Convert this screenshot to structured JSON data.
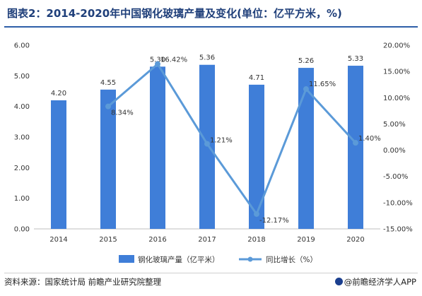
{
  "header": {
    "title": "图表2：2014-2020年中国钢化玻璃产量及变化(单位：亿平方米，%)"
  },
  "chart_data": {
    "type": "bar",
    "categories": [
      "2014",
      "2015",
      "2016",
      "2017",
      "2018",
      "2019",
      "2020"
    ],
    "series": [
      {
        "name": "钢化玻璃产量（亿平米）",
        "type": "bar",
        "axis": "left",
        "values": [
          4.2,
          4.55,
          5.3,
          5.36,
          4.71,
          5.26,
          5.33
        ],
        "labels": [
          "4.20",
          "4.55",
          "5.30",
          "5.36",
          "4.71",
          "5.26",
          "5.33"
        ]
      },
      {
        "name": "同比增长（%）",
        "type": "line",
        "axis": "right",
        "values": [
          null,
          8.34,
          16.42,
          1.21,
          -12.17,
          11.65,
          1.4
        ],
        "labels": [
          "",
          "8.34%",
          "16.42%",
          "1.21%",
          "-12.17%",
          "11.65%",
          "1.40%"
        ]
      }
    ],
    "y_left": {
      "lim": [
        0,
        6
      ],
      "ticks": [
        "0.00",
        "1.00",
        "2.00",
        "3.00",
        "4.00",
        "5.00",
        "6.00"
      ]
    },
    "y_right": {
      "lim": [
        -15,
        20
      ],
      "ticks": [
        "-15.00%",
        "-10.00%",
        "-5.00%",
        "0.00%",
        "5.00%",
        "10.00%",
        "15.00%",
        "20.00%"
      ]
    },
    "legend_position": "bottom",
    "grid": false,
    "colors": {
      "bar": "#3f7ed8",
      "line": "#5b9ad8"
    }
  },
  "footer": {
    "source": "资料来源：国家统计局 前瞻产业研究院整理",
    "brand": "@前瞻经济学人APP"
  }
}
